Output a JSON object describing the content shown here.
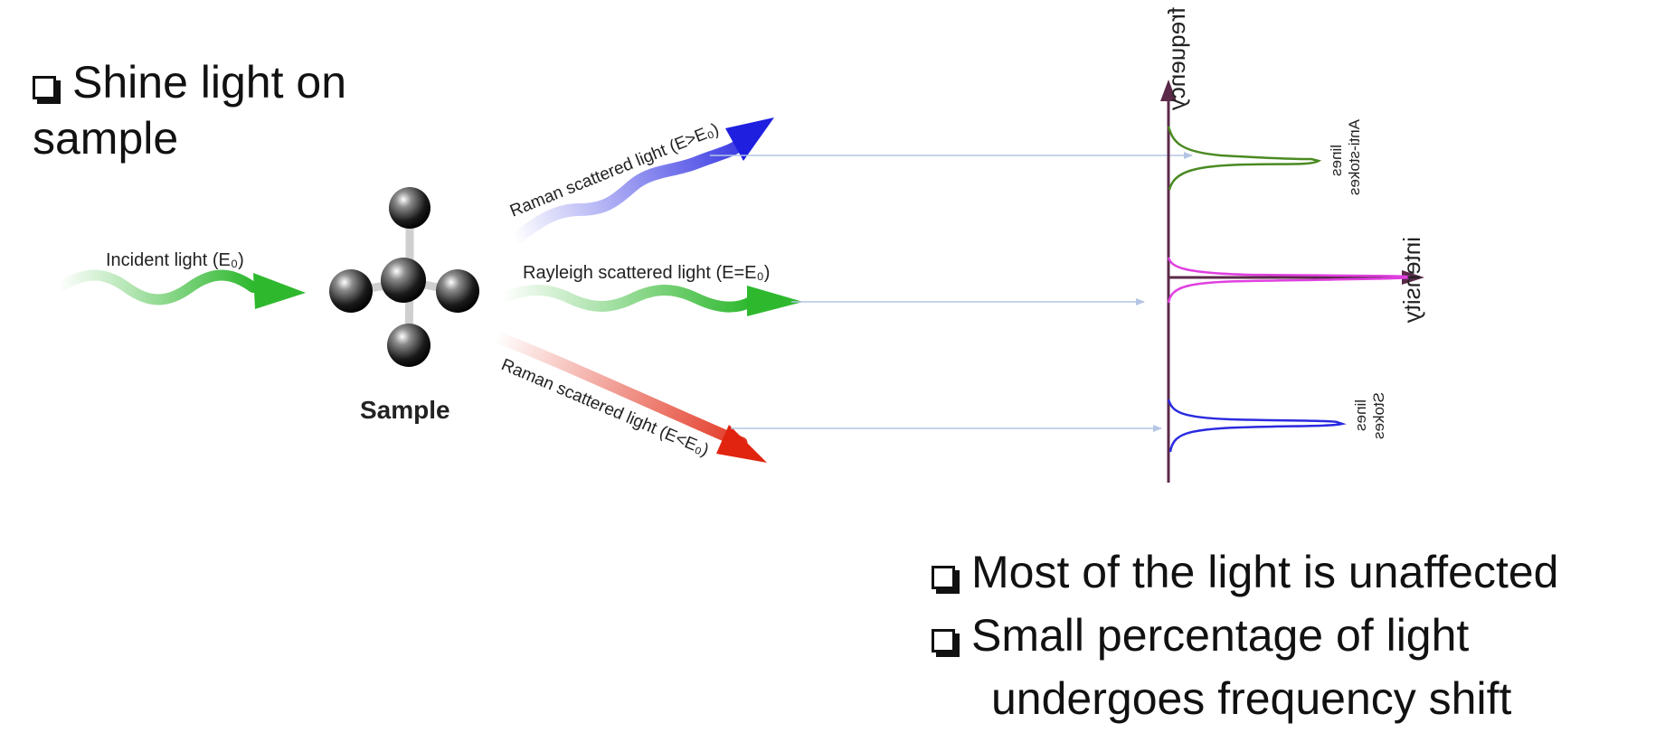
{
  "bullets_left": [
    "Shine light on sample"
  ],
  "bullets_right": [
    "Most of the light is unaffected",
    "Small percentage of light",
    "undergoes frequency shift"
  ],
  "diagram": {
    "incident_label": "Incident light (E₀)",
    "sample_label": "Sample",
    "raman_up_label": "Raman scattered light (E>E₀)",
    "rayleigh_label": "Rayleigh scattered light (E=E₀)",
    "raman_down_label": "Raman scattered light (E<E₀)",
    "colors": {
      "incident": "#2eb82e",
      "rayleigh": "#2eb82e",
      "raman_up": "#1f1fe0",
      "raman_down": "#e0240f",
      "axis": "#5a2a48",
      "anti_stokes_peak": "#4a8a22",
      "rayleigh_peak": "#e040e0",
      "stokes_peak": "#2a2ae0",
      "axis_title": "#7a2a7a",
      "line_label": "#1e6a5a"
    }
  },
  "spectrum": {
    "frequency_label": "frequency",
    "intensity_label": "intensity",
    "anti_stokes_label": [
      "Anti-stokes",
      "lines"
    ],
    "stokes_label": [
      "Stokes",
      "lines"
    ]
  }
}
